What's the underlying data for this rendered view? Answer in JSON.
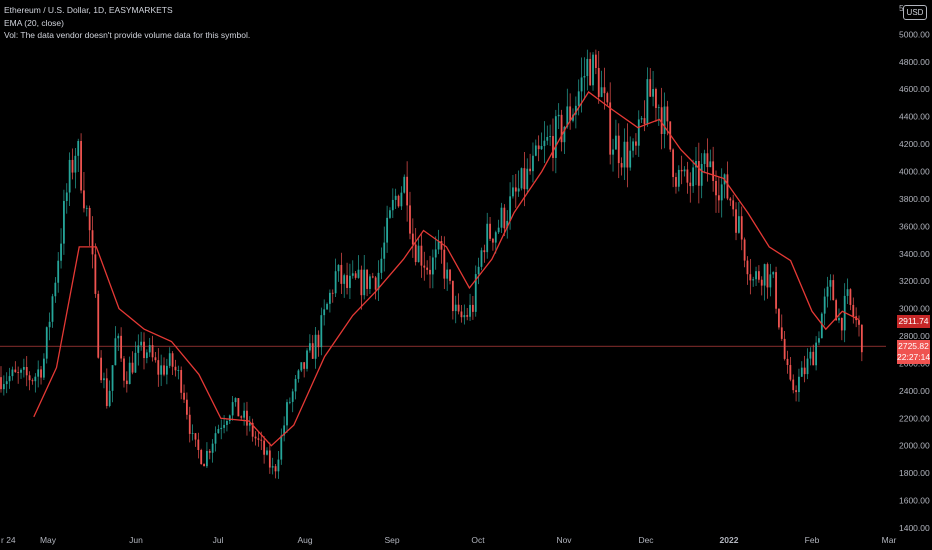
{
  "header": {
    "symbol_line": "Ethereum / U.S. Dollar, 1D, EASYMARKETS",
    "indicator_line": "EMA (20, close)",
    "volume_line": "Vol: The data vendor doesn't provide volume data for this symbol."
  },
  "currency_badge": "USD",
  "price_tags": {
    "ema_value": "2911.74",
    "last_price": "2725.82",
    "countdown": "22:27:14"
  },
  "colors": {
    "background": "#000000",
    "up_candle": "#26a69a",
    "down_candle": "#ef5350",
    "ema_line": "#e53935",
    "last_price_line": "#ef5350"
  },
  "chart_data": {
    "type": "candlestick",
    "title": "Ethereum / U.S. Dollar, 1D, EASYMARKETS",
    "interval": "1D",
    "y_axis": {
      "position": "right",
      "ylim": [
        1400,
        5200
      ],
      "ticks": [
        1400,
        1600,
        1800,
        2000,
        2200,
        2400,
        2600,
        2800,
        3000,
        3200,
        3400,
        3600,
        3800,
        4000,
        4200,
        4400,
        4600,
        4800,
        5000
      ],
      "tick_labels": [
        "1400.00",
        "1600.00",
        "1800.00",
        "2000.00",
        "2200.00",
        "2400.00",
        "2600.00",
        "2800.00",
        "3000.00",
        "3200.00",
        "3400.00",
        "3600.00",
        "3800.00",
        "4000.00",
        "4200.00",
        "4400.00",
        "4600.00",
        "4800.00",
        "5000.00"
      ],
      "partial_top_label": "5"
    },
    "x_axis": {
      "tick_labels": [
        "r 24",
        "May",
        "Jun",
        "Jul",
        "Aug",
        "Sep",
        "Oct",
        "Nov",
        "Dec",
        "2022",
        "Feb",
        "Mar"
      ]
    },
    "grid": false,
    "last_price_line": 2725.82,
    "ema": {
      "name": "EMA (20, close)",
      "value_at_end": 2911.74,
      "points": [
        [
          "Apr 24",
          2210
        ],
        [
          "May 4",
          2570
        ],
        [
          "May 12",
          3450
        ],
        [
          "May 18",
          3450
        ],
        [
          "May 26",
          3000
        ],
        [
          "Jun 4",
          2850
        ],
        [
          "Jun 14",
          2760
        ],
        [
          "Jun 24",
          2520
        ],
        [
          "Jul 2",
          2200
        ],
        [
          "Jul 12",
          2180
        ],
        [
          "Jul 20",
          2000
        ],
        [
          "Jul 28",
          2150
        ],
        [
          "Aug 8",
          2650
        ],
        [
          "Aug 18",
          2950
        ],
        [
          "Aug 26",
          3120
        ],
        [
          "Sep 5",
          3360
        ],
        [
          "Sep 12",
          3570
        ],
        [
          "Sep 20",
          3450
        ],
        [
          "Sep 28",
          3150
        ],
        [
          "Oct 6",
          3360
        ],
        [
          "Oct 14",
          3700
        ],
        [
          "Oct 24",
          4000
        ],
        [
          "Nov 2",
          4330
        ],
        [
          "Nov 10",
          4580
        ],
        [
          "Nov 18",
          4460
        ],
        [
          "Nov 28",
          4320
        ],
        [
          "Dec 6",
          4380
        ],
        [
          "Dec 14",
          4160
        ],
        [
          "Dec 22",
          4000
        ],
        [
          "Dec 30",
          3950
        ],
        [
          "Jan 8",
          3700
        ],
        [
          "Jan 16",
          3450
        ],
        [
          "Jan 24",
          3350
        ],
        [
          "Feb 1",
          2980
        ],
        [
          "Feb 6",
          2850
        ],
        [
          "Feb 12",
          2980
        ],
        [
          "Feb 18",
          2920
        ]
      ]
    },
    "price_path": [
      [
        "Apr 24",
        2500
      ],
      [
        "Apr 28",
        2600
      ],
      [
        "May 4",
        3300
      ],
      [
        "May 8",
        3900
      ],
      [
        "May 11",
        4200
      ],
      [
        "May 14",
        3800
      ],
      [
        "May 16",
        3500
      ],
      [
        "May 19",
        2650
      ],
      [
        "May 22",
        2300
      ],
      [
        "May 25",
        2800
      ],
      [
        "May 28",
        2500
      ],
      [
        "Jun 1",
        2650
      ],
      [
        "Jun 5",
        2700
      ],
      [
        "Jun 9",
        2550
      ],
      [
        "Jun 14",
        2600
      ],
      [
        "Jun 18",
        2450
      ],
      [
        "Jun 22",
        2000
      ],
      [
        "Jun 26",
        1900
      ],
      [
        "Jun 30",
        2100
      ],
      [
        "Jul 6",
        2300
      ],
      [
        "Jul 10",
        2200
      ],
      [
        "Jul 16",
        2000
      ],
      [
        "Jul 21",
        1800
      ],
      [
        "Jul 26",
        2300
      ],
      [
        "Jul 31",
        2550
      ],
      [
        "Aug 6",
        2800
      ],
      [
        "Aug 12",
        3250
      ],
      [
        "Aug 16",
        3150
      ],
      [
        "Aug 22",
        3200
      ],
      [
        "Aug 27",
        3250
      ],
      [
        "Sep 2",
        3800
      ],
      [
        "Sep 6",
        3950
      ],
      [
        "Sep 8",
        3500
      ],
      [
        "Sep 14",
        3300
      ],
      [
        "Sep 18",
        3400
      ],
      [
        "Sep 24",
        2900
      ],
      [
        "Sep 29",
        3000
      ],
      [
        "Oct 3",
        3500
      ],
      [
        "Oct 8",
        3600
      ],
      [
        "Oct 14",
        3800
      ],
      [
        "Oct 20",
        4000
      ],
      [
        "Oct 26",
        4200
      ],
      [
        "Oct 31",
        4300
      ],
      [
        "Nov 5",
        4500
      ],
      [
        "Nov 10",
        4800
      ],
      [
        "Nov 14",
        4650
      ],
      [
        "Nov 18",
        4250
      ],
      [
        "Nov 22",
        4150
      ],
      [
        "Nov 27",
        4100
      ],
      [
        "Dec 1",
        4500
      ],
      [
        "Dec 4",
        4600
      ],
      [
        "Dec 8",
        4350
      ],
      [
        "Dec 12",
        4000
      ],
      [
        "Dec 16",
        3900
      ],
      [
        "Dec 20",
        3950
      ],
      [
        "Dec 24",
        4050
      ],
      [
        "Dec 29",
        3900
      ],
      [
        "Jan 2",
        3800
      ],
      [
        "Jan 6",
        3500
      ],
      [
        "Jan 10",
        3200
      ],
      [
        "Jan 14",
        3300
      ],
      [
        "Jan 18",
        3150
      ],
      [
        "Jan 22",
        2600
      ],
      [
        "Jan 24",
        2400
      ],
      [
        "Jan 28",
        2500
      ],
      [
        "Feb 2",
        2700
      ],
      [
        "Feb 5",
        3000
      ],
      [
        "Feb 8",
        3150
      ],
      [
        "Feb 11",
        2900
      ],
      [
        "Feb 14",
        3050
      ],
      [
        "Feb 17",
        2900
      ],
      [
        "Feb 20",
        2726
      ]
    ]
  }
}
